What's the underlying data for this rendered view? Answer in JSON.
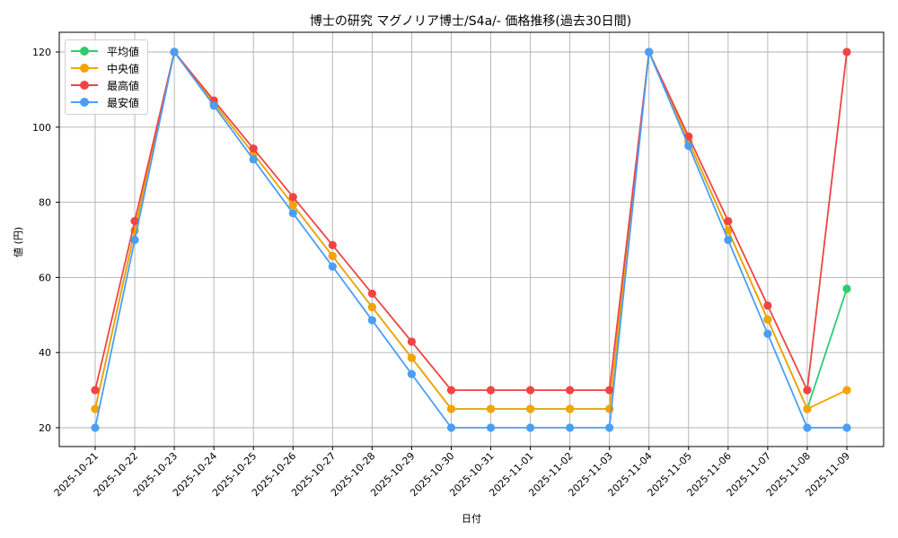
{
  "chart_data": {
    "type": "line",
    "title": "博士の研究 マグノリア博士/S4a/- 価格推移(過去30日間)",
    "xlabel": "日付",
    "ylabel": "値 (円)",
    "categories": [
      "2025-10-21",
      "2025-10-22",
      "2025-10-23",
      "2025-10-24",
      "2025-10-25",
      "2025-10-26",
      "2025-10-27",
      "2025-10-28",
      "2025-10-29",
      "2025-10-30",
      "2025-10-31",
      "2025-11-01",
      "2025-11-02",
      "2025-11-03",
      "2025-11-04",
      "2025-11-05",
      "2025-11-06",
      "2025-11-07",
      "2025-11-08",
      "2025-11-09"
    ],
    "yticks": [
      20,
      40,
      60,
      80,
      100,
      120
    ],
    "ylim": [
      15,
      125
    ],
    "grid": true,
    "legend_position": "upper left",
    "series": [
      {
        "name": "平均値",
        "color": "#2ecc71",
        "values": [
          25,
          72.5,
          120,
          106.4,
          92.9,
          79.3,
          65.7,
          52.1,
          38.6,
          25,
          25,
          25,
          25,
          25,
          120,
          96.2,
          72.5,
          48.8,
          25,
          57
        ]
      },
      {
        "name": "中央値",
        "color": "#f5a300",
        "values": [
          25,
          72.5,
          120,
          106.4,
          92.9,
          79.3,
          65.7,
          52.1,
          38.6,
          25,
          25,
          25,
          25,
          25,
          120,
          96.2,
          72.5,
          48.8,
          25,
          30
        ]
      },
      {
        "name": "最高値",
        "color": "#ef4444",
        "values": [
          30,
          75,
          120,
          107.1,
          94.3,
          81.4,
          68.6,
          55.7,
          42.9,
          30,
          30,
          30,
          30,
          30,
          120,
          97.5,
          75,
          52.5,
          30,
          120
        ]
      },
      {
        "name": "最安値",
        "color": "#4a9ef5",
        "values": [
          20,
          70,
          120,
          105.7,
          91.4,
          77.1,
          62.9,
          48.6,
          34.3,
          20,
          20,
          20,
          20,
          20,
          120,
          95,
          70,
          45,
          20,
          20
        ]
      }
    ]
  }
}
